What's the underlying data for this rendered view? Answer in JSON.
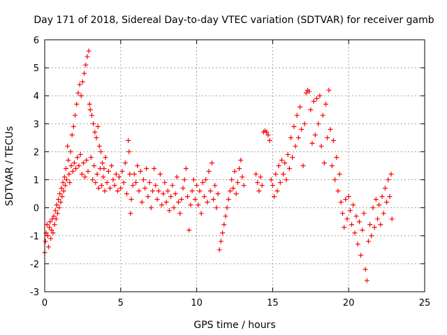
{
  "chart_data": {
    "type": "scatter",
    "title": "Day 171 of 2018, Sidereal Day-to-day VTEC variation (SDTVAR) for receiver gamb",
    "xlabel": "GPS time / hours",
    "ylabel": "SDTVAR / TECUs",
    "xlim": [
      0,
      25
    ],
    "ylim": [
      -3,
      6
    ],
    "xticks": [
      "0",
      "5",
      "10",
      "15",
      "20",
      "25"
    ],
    "yticks": [
      "-3",
      "-2",
      "-1",
      "0",
      "1",
      "2",
      "3",
      "4",
      "5",
      "6"
    ],
    "grid": true,
    "marker": "+",
    "series": [
      {
        "name": "SDTVAR",
        "color": "#ff0000",
        "points": [
          [
            0.0,
            -1.6
          ],
          [
            0.05,
            -1.2
          ],
          [
            0.1,
            -0.9
          ],
          [
            0.15,
            -0.6
          ],
          [
            0.2,
            -1.0
          ],
          [
            0.25,
            -1.4
          ],
          [
            0.3,
            -0.7
          ],
          [
            0.35,
            -0.5
          ],
          [
            0.4,
            -1.1
          ],
          [
            0.45,
            -0.8
          ],
          [
            0.5,
            -0.4
          ],
          [
            0.55,
            -0.9
          ],
          [
            0.6,
            -0.3
          ],
          [
            0.65,
            -0.6
          ],
          [
            0.7,
            -0.1
          ],
          [
            0.75,
            -0.4
          ],
          [
            0.8,
            0.1
          ],
          [
            0.85,
            -0.2
          ],
          [
            0.9,
            0.3
          ],
          [
            0.95,
            0.0
          ],
          [
            1.0,
            0.5
          ],
          [
            1.05,
            0.2
          ],
          [
            1.1,
            0.7
          ],
          [
            1.15,
            0.4
          ],
          [
            1.2,
            0.9
          ],
          [
            1.25,
            0.6
          ],
          [
            1.3,
            1.1
          ],
          [
            1.35,
            0.8
          ],
          [
            1.4,
            1.4
          ],
          [
            1.45,
            1.0
          ],
          [
            1.5,
            2.2
          ],
          [
            1.55,
            1.7
          ],
          [
            1.6,
            1.2
          ],
          [
            1.65,
            0.9
          ],
          [
            1.7,
            2.0
          ],
          [
            1.75,
            1.5
          ],
          [
            1.8,
            2.6
          ],
          [
            1.85,
            1.3
          ],
          [
            1.9,
            2.9
          ],
          [
            1.95,
            1.6
          ],
          [
            2.0,
            3.3
          ],
          [
            2.05,
            1.4
          ],
          [
            2.1,
            3.7
          ],
          [
            2.15,
            1.8
          ],
          [
            2.2,
            4.1
          ],
          [
            2.25,
            1.5
          ],
          [
            2.3,
            4.4
          ],
          [
            2.35,
            1.9
          ],
          [
            2.4,
            4.0
          ],
          [
            2.45,
            1.2
          ],
          [
            2.5,
            4.5
          ],
          [
            2.55,
            1.6
          ],
          [
            2.6,
            4.8
          ],
          [
            2.65,
            1.1
          ],
          [
            2.7,
            5.1
          ],
          [
            2.75,
            1.7
          ],
          [
            2.8,
            5.4
          ],
          [
            2.85,
            1.3
          ],
          [
            2.9,
            5.6
          ],
          [
            2.95,
            3.7
          ],
          [
            3.0,
            3.5
          ],
          [
            3.05,
            1.8
          ],
          [
            3.1,
            3.3
          ],
          [
            3.15,
            1.0
          ],
          [
            3.2,
            3.0
          ],
          [
            3.25,
            1.5
          ],
          [
            3.3,
            2.7
          ],
          [
            3.35,
            0.9
          ],
          [
            3.4,
            2.5
          ],
          [
            3.45,
            1.2
          ],
          [
            3.5,
            2.9
          ],
          [
            3.55,
            0.7
          ],
          [
            3.6,
            2.2
          ],
          [
            3.65,
            1.4
          ],
          [
            3.7,
            2.0
          ],
          [
            3.75,
            0.8
          ],
          [
            3.8,
            1.6
          ],
          [
            3.85,
            1.1
          ],
          [
            3.9,
            1.4
          ],
          [
            3.95,
            0.6
          ],
          [
            4.0,
            1.8
          ],
          [
            4.1,
            0.9
          ],
          [
            4.2,
            1.3
          ],
          [
            4.3,
            0.7
          ],
          [
            4.4,
            1.5
          ],
          [
            4.5,
            1.0
          ],
          [
            4.6,
            0.8
          ],
          [
            4.7,
            1.2
          ],
          [
            4.8,
            0.6
          ],
          [
            4.9,
            1.1
          ],
          [
            5.0,
            0.7
          ],
          [
            5.1,
            1.3
          ],
          [
            5.2,
            0.9
          ],
          [
            5.3,
            1.6
          ],
          [
            5.4,
            0.5
          ],
          [
            5.5,
            2.4
          ],
          [
            5.55,
            2.0
          ],
          [
            5.6,
            1.2
          ],
          [
            5.65,
            -0.2
          ],
          [
            5.7,
            0.3
          ],
          [
            5.8,
            0.8
          ],
          [
            5.9,
            1.2
          ],
          [
            6.0,
            0.9
          ],
          [
            6.1,
            1.5
          ],
          [
            6.2,
            0.6
          ],
          [
            6.3,
            1.3
          ],
          [
            6.4,
            0.2
          ],
          [
            6.5,
            1.0
          ],
          [
            6.6,
            0.7
          ],
          [
            6.7,
            1.4
          ],
          [
            6.8,
            0.4
          ],
          [
            6.9,
            0.9
          ],
          [
            7.0,
            0.0
          ],
          [
            7.1,
            0.6
          ],
          [
            7.2,
            1.4
          ],
          [
            7.3,
            0.8
          ],
          [
            7.4,
            0.3
          ],
          [
            7.5,
            0.6
          ],
          [
            7.6,
            1.2
          ],
          [
            7.7,
            0.1
          ],
          [
            7.8,
            0.5
          ],
          [
            7.9,
            0.9
          ],
          [
            8.0,
            0.2
          ],
          [
            8.1,
            0.6
          ],
          [
            8.2,
            -0.1
          ],
          [
            8.3,
            0.4
          ],
          [
            8.4,
            0.8
          ],
          [
            8.5,
            0.0
          ],
          [
            8.6,
            0.5
          ],
          [
            8.7,
            1.1
          ],
          [
            8.8,
            0.2
          ],
          [
            8.9,
            -0.2
          ],
          [
            9.0,
            0.3
          ],
          [
            9.1,
            0.7
          ],
          [
            9.2,
            1.0
          ],
          [
            9.3,
            1.4
          ],
          [
            9.4,
            0.4
          ],
          [
            9.5,
            -0.8
          ],
          [
            9.6,
            0.1
          ],
          [
            9.7,
            0.6
          ],
          [
            9.8,
            1.0
          ],
          [
            9.9,
            0.3
          ],
          [
            10.0,
            0.8
          ],
          [
            10.1,
            0.1
          ],
          [
            10.2,
            0.6
          ],
          [
            10.3,
            -0.2
          ],
          [
            10.4,
            0.9
          ],
          [
            10.5,
            0.4
          ],
          [
            10.6,
            1.0
          ],
          [
            10.7,
            0.2
          ],
          [
            10.8,
            1.3
          ],
          [
            10.9,
            0.6
          ],
          [
            11.0,
            1.6
          ],
          [
            11.1,
            0.3
          ],
          [
            11.2,
            0.8
          ],
          [
            11.3,
            0.0
          ],
          [
            11.4,
            0.5
          ],
          [
            11.5,
            -1.5
          ],
          [
            11.6,
            -1.2
          ],
          [
            11.7,
            -0.9
          ],
          [
            11.8,
            -0.6
          ],
          [
            11.9,
            -0.3
          ],
          [
            12.0,
            0.0
          ],
          [
            12.1,
            0.3
          ],
          [
            12.2,
            0.6
          ],
          [
            12.3,
            1.0
          ],
          [
            12.4,
            0.7
          ],
          [
            12.5,
            1.3
          ],
          [
            12.6,
            0.5
          ],
          [
            12.7,
            0.9
          ],
          [
            12.8,
            1.4
          ],
          [
            12.9,
            1.7
          ],
          [
            13.0,
            1.1
          ],
          [
            13.1,
            0.8
          ],
          [
            13.9,
            1.2
          ],
          [
            14.0,
            0.9
          ],
          [
            14.1,
            0.6
          ],
          [
            14.2,
            1.1
          ],
          [
            14.3,
            0.8
          ],
          [
            14.4,
            2.7
          ],
          [
            14.5,
            2.75
          ],
          [
            14.6,
            2.7
          ],
          [
            14.7,
            2.6
          ],
          [
            14.8,
            2.4
          ],
          [
            14.9,
            1.0
          ],
          [
            15.0,
            0.8
          ],
          [
            15.1,
            0.4
          ],
          [
            15.2,
            1.2
          ],
          [
            15.3,
            0.6
          ],
          [
            15.4,
            1.5
          ],
          [
            15.5,
            0.9
          ],
          [
            15.6,
            1.7
          ],
          [
            15.7,
            1.2
          ],
          [
            15.8,
            1.6
          ],
          [
            15.9,
            1.0
          ],
          [
            16.0,
            1.9
          ],
          [
            16.1,
            1.4
          ],
          [
            16.2,
            2.5
          ],
          [
            16.3,
            1.8
          ],
          [
            16.4,
            2.9
          ],
          [
            16.5,
            2.2
          ],
          [
            16.6,
            3.3
          ],
          [
            16.7,
            2.5
          ],
          [
            16.8,
            3.6
          ],
          [
            16.9,
            2.8
          ],
          [
            17.0,
            1.5
          ],
          [
            17.1,
            3.0
          ],
          [
            17.2,
            4.1
          ],
          [
            17.3,
            4.2
          ],
          [
            17.4,
            4.15
          ],
          [
            17.5,
            3.5
          ],
          [
            17.6,
            2.3
          ],
          [
            17.7,
            3.8
          ],
          [
            17.8,
            2.6
          ],
          [
            17.9,
            3.9
          ],
          [
            18.0,
            3.0
          ],
          [
            18.1,
            4.0
          ],
          [
            18.2,
            2.2
          ],
          [
            18.3,
            3.3
          ],
          [
            18.4,
            1.6
          ],
          [
            18.5,
            3.7
          ],
          [
            18.6,
            2.5
          ],
          [
            18.7,
            4.2
          ],
          [
            18.8,
            2.8
          ],
          [
            18.9,
            1.5
          ],
          [
            19.0,
            2.4
          ],
          [
            19.1,
            1.0
          ],
          [
            19.2,
            1.8
          ],
          [
            19.3,
            0.6
          ],
          [
            19.4,
            1.2
          ],
          [
            19.5,
            0.2
          ],
          [
            19.6,
            -0.2
          ],
          [
            19.7,
            -0.7
          ],
          [
            19.8,
            0.3
          ],
          [
            19.9,
            -0.4
          ],
          [
            20.0,
            0.4
          ],
          [
            20.1,
            -0.1
          ],
          [
            20.2,
            -0.6
          ],
          [
            20.3,
            0.1
          ],
          [
            20.4,
            -0.9
          ],
          [
            20.5,
            -0.3
          ],
          [
            20.6,
            -1.3
          ],
          [
            20.7,
            -0.5
          ],
          [
            20.8,
            -1.7
          ],
          [
            20.9,
            -0.8
          ],
          [
            21.0,
            -0.2
          ],
          [
            21.1,
            -2.2
          ],
          [
            21.2,
            -2.6
          ],
          [
            21.3,
            -1.2
          ],
          [
            21.4,
            -0.6
          ],
          [
            21.5,
            -1.0
          ],
          [
            21.6,
            0.0
          ],
          [
            21.7,
            -0.7
          ],
          [
            21.8,
            0.3
          ],
          [
            21.9,
            -0.4
          ],
          [
            22.0,
            0.1
          ],
          [
            22.1,
            -0.6
          ],
          [
            22.2,
            0.4
          ],
          [
            22.3,
            -0.2
          ],
          [
            22.4,
            0.7
          ],
          [
            22.5,
            0.2
          ],
          [
            22.6,
            1.0
          ],
          [
            22.7,
            0.4
          ],
          [
            22.8,
            1.2
          ],
          [
            22.85,
            -0.4
          ]
        ]
      }
    ]
  }
}
